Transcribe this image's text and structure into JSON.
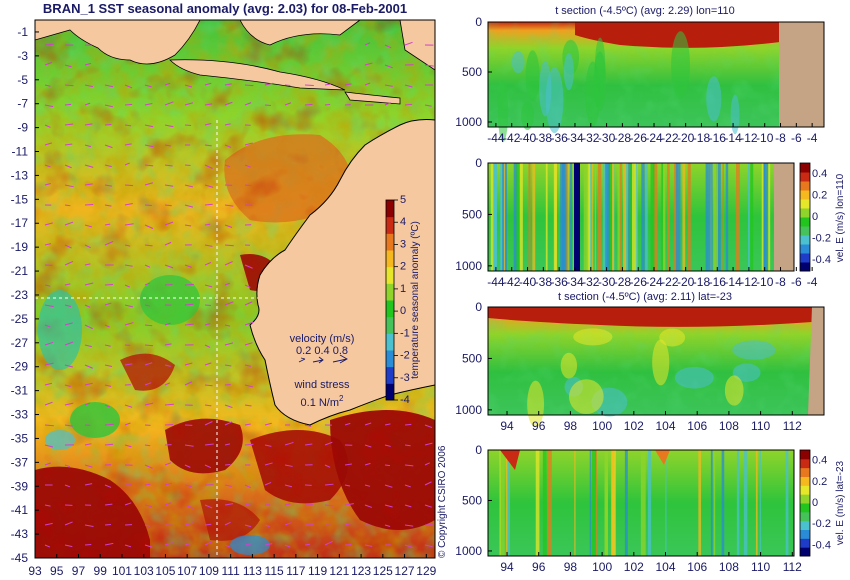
{
  "colors": {
    "land": "#f5c8a0",
    "text": "#1a1a66",
    "mask": "#c4a485",
    "vector": "#d040d0",
    "scale": [
      "#00006e",
      "#1f3cc8",
      "#2a8bd6",
      "#4bc0cf",
      "#45c25a",
      "#22c51e",
      "#8fd42a",
      "#e6e62a",
      "#f5b81e",
      "#e8781e",
      "#c82a14",
      "#8b0000"
    ]
  },
  "map": {
    "title": "BRAN_1 SST seasonal anomaly (avg: 2.03) for 08-Feb-2001",
    "lat_ticks": [
      "-1",
      "-3",
      "-5",
      "-7",
      "-9",
      "-11",
      "-13",
      "-15",
      "-17",
      "-19",
      "-21",
      "-23",
      "-25",
      "-27",
      "-29",
      "-31",
      "-33",
      "-35",
      "-37",
      "-39",
      "-41",
      "-43",
      "-45"
    ],
    "lon_ticks": [
      "93",
      "95",
      "97",
      "99",
      "101",
      "103",
      "105",
      "107",
      "109",
      "111",
      "113",
      "115",
      "117",
      "119",
      "121",
      "123",
      "125",
      "127",
      "129"
    ],
    "colorbar_ticks": [
      "5",
      "4",
      "3",
      "2",
      "1",
      "0",
      "-1",
      "-2",
      "-3",
      "-4"
    ],
    "colorbar_label": "temperature seasonal anomaly (ºC)",
    "legend_velocity": "velocity (m/s)",
    "legend_velocity_values": "0.2 0.4 0.8",
    "legend_wind": "wind stress",
    "legend_wind_value": "0.1 N/m",
    "legend_wind_sup": "2",
    "copyright": "© Copyright CSIRO 2006"
  },
  "panel1": {
    "title": "t section (-4.5ºC) (avg: 2.29) lon=110",
    "y_ticks": [
      "0",
      "500",
      "1000"
    ],
    "x_ticks": [
      "-44",
      "-42",
      "-40",
      "-38",
      "-36",
      "-34",
      "-32",
      "-30",
      "-28",
      "-26",
      "-24",
      "-22",
      "-20",
      "-18",
      "-16",
      "-14",
      "-12",
      "-10",
      "-8",
      "-6",
      "-4"
    ]
  },
  "panel2": {
    "y_ticks": [
      "0",
      "500",
      "1000"
    ],
    "x_ticks": [
      "-44",
      "-42",
      "-40",
      "-38",
      "-36",
      "-34",
      "-32",
      "-30",
      "-28",
      "-26",
      "-24",
      "-22",
      "-20",
      "-18",
      "-16",
      "-14",
      "-12",
      "-10",
      "-8",
      "-6",
      "-4"
    ],
    "colorbar_ticks": [
      "0.4",
      "0.2",
      "0",
      "-0.2",
      "-0.4"
    ],
    "colorbar_label": "vel. E (m/s) lon=110"
  },
  "panel3": {
    "title": "t section (-4.5ºC) (avg: 2.11) lat=-23",
    "y_ticks": [
      "0",
      "500",
      "1000"
    ],
    "x_ticks": [
      "94",
      "96",
      "98",
      "100",
      "102",
      "104",
      "106",
      "108",
      "110",
      "112"
    ]
  },
  "panel4": {
    "y_ticks": [
      "0",
      "500",
      "1000"
    ],
    "x_ticks": [
      "94",
      "96",
      "98",
      "100",
      "102",
      "104",
      "106",
      "108",
      "110",
      "112"
    ],
    "colorbar_ticks": [
      "0.4",
      "0.2",
      "0",
      "-0.2",
      "-0.4"
    ],
    "colorbar_label": "vel. E (m/s) lat=-23"
  },
  "chart_data": [
    {
      "type": "heatmap",
      "title": "BRAN_1 SST seasonal anomaly (avg: 2.03) for 08-Feb-2001",
      "xlim": [
        93,
        129.8
      ],
      "ylim": [
        -45,
        0
      ],
      "colorbar": {
        "label": "temperature seasonal anomaly (ºC)",
        "range": [
          -4,
          5
        ]
      }
    },
    {
      "type": "heatmap",
      "title": "t section (-4.5ºC) (avg: 2.29) lon=110",
      "xlim": [
        -45,
        -2.5
      ],
      "ylim": [
        1050,
        0
      ]
    },
    {
      "type": "heatmap",
      "xlim": [
        -45,
        -2.5
      ],
      "ylim": [
        1050,
        0
      ],
      "colorbar": {
        "label": "vel. E (m/s) lon=110",
        "range": [
          -0.5,
          0.5
        ]
      }
    },
    {
      "type": "heatmap",
      "title": "t section (-4.5ºC) (avg: 2.11) lat=-23",
      "xlim": [
        92.8,
        114
      ],
      "ylim": [
        1050,
        0
      ]
    },
    {
      "type": "heatmap",
      "xlim": [
        92.8,
        114
      ],
      "ylim": [
        1050,
        0
      ],
      "colorbar": {
        "label": "vel. E (m/s) lat=-23",
        "range": [
          -0.5,
          0.5
        ]
      }
    }
  ]
}
